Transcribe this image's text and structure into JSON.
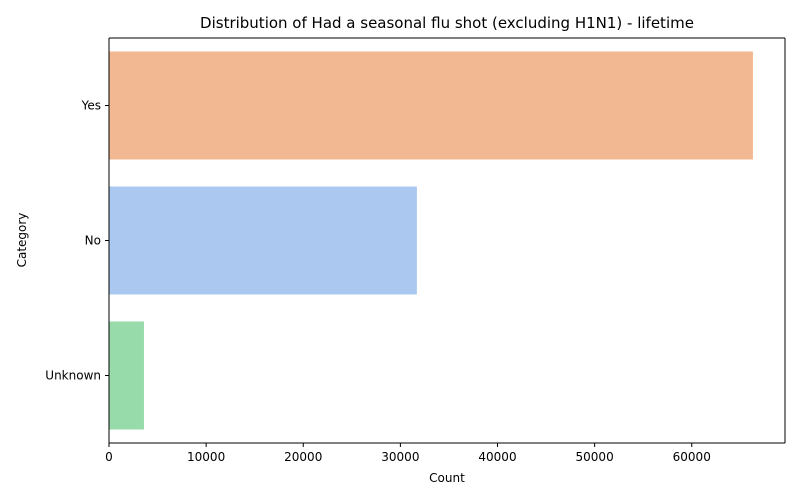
{
  "chart_data": {
    "type": "bar",
    "orientation": "horizontal",
    "title": "Distribution of Had a seasonal flu shot (excluding H1N1) - lifetime",
    "xlabel": "Count",
    "ylabel": "Category",
    "categories": [
      "Yes",
      "No",
      "Unknown"
    ],
    "values": [
      66300,
      31700,
      3600
    ],
    "colors": [
      "#f1b892",
      "#abc9f0",
      "#98dbab"
    ],
    "xlim": [
      0,
      69600
    ],
    "xticks": [
      0,
      10000,
      20000,
      30000,
      40000,
      50000,
      60000
    ],
    "xtick_labels": [
      "0",
      "10000",
      "20000",
      "30000",
      "40000",
      "50000",
      "60000"
    ],
    "grid": false,
    "legend": "none"
  }
}
